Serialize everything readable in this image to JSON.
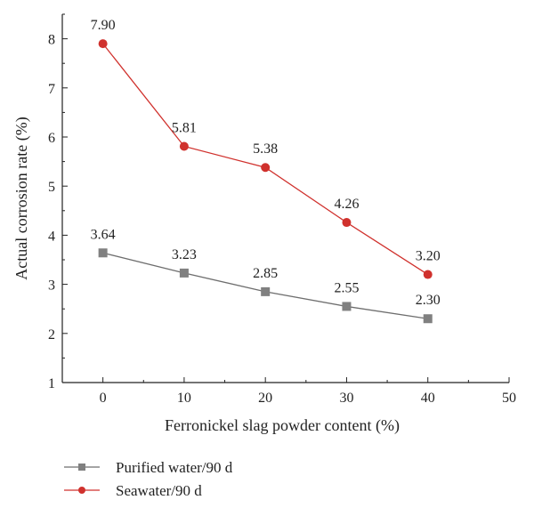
{
  "chart_data": {
    "type": "line",
    "title": "",
    "xlabel": "Ferronickel slag powder content (%)",
    "ylabel": "Actual corrosion rate (%)",
    "x": [
      0,
      10,
      20,
      30,
      40
    ],
    "xlim": [
      -5,
      50
    ],
    "ylim": [
      1,
      8.5
    ],
    "xticks": [
      0,
      10,
      20,
      30,
      40,
      50
    ],
    "yticks": [
      1,
      2,
      3,
      4,
      5,
      6,
      7,
      8
    ],
    "grid": false,
    "legend_position": "bottom-left, below plot",
    "series": [
      {
        "name": "Purified water/90 d",
        "values": [
          3.64,
          3.23,
          2.85,
          2.55,
          2.3
        ],
        "labels": [
          "3.64",
          "3.23",
          "2.85",
          "2.55",
          "2.30"
        ],
        "color": "#808080",
        "line_color": "#6e6e6e",
        "marker": "square"
      },
      {
        "name": "Seawater/90 d",
        "values": [
          7.9,
          5.81,
          5.38,
          4.26,
          3.2
        ],
        "labels": [
          "7.90",
          "5.81",
          "5.38",
          "4.26",
          "3.20"
        ],
        "color": "#d0312d",
        "line_color": "#d0312d",
        "marker": "circle"
      }
    ]
  }
}
